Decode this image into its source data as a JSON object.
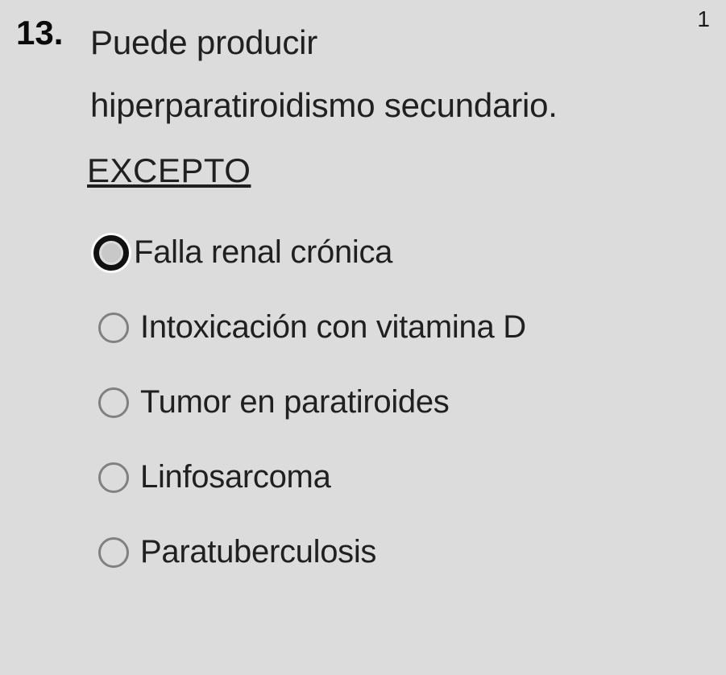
{
  "question": {
    "number": "13.",
    "points": "1",
    "text_line1": "Puede producir",
    "text_line2": "hiperparatiroidismo secundario.",
    "except_label": " EXCEPTO"
  },
  "options": [
    {
      "label": "Falla renal crónica",
      "focused": true
    },
    {
      "label": "Intoxicación con vitamina D",
      "focused": false
    },
    {
      "label": "Tumor en paratiroides",
      "focused": false
    },
    {
      "label": "Linfosarcoma",
      "focused": false
    },
    {
      "label": "Paratuberculosis",
      "focused": false
    }
  ],
  "style": {
    "background_color": "#dcdcdc",
    "text_color": "#202020",
    "number_color": "#0a0a0a",
    "radio_border_color": "#808080",
    "radio_focused_border": "#111111",
    "radio_focused_halo": "#fbfbfb",
    "question_fontsize": 42,
    "option_fontsize": 40,
    "points_fontsize": 28
  }
}
